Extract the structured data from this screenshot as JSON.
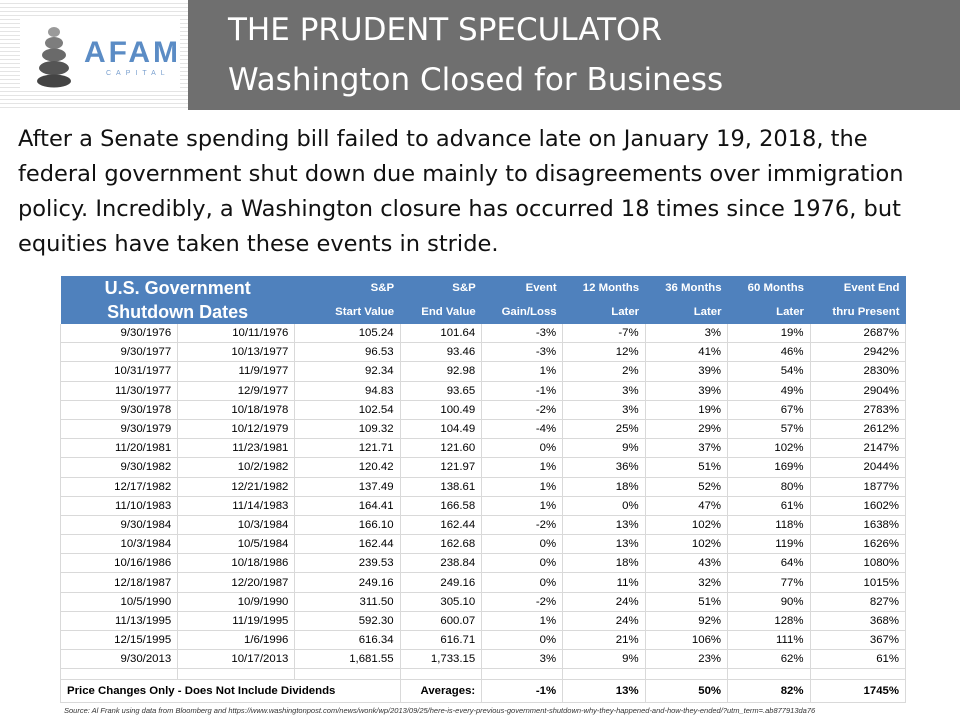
{
  "logo": {
    "name": "AFAM",
    "sub": "CAPITAL",
    "icon": "stacked-stones-icon"
  },
  "header": {
    "title_line1": "THE PRUDENT SPECULATOR",
    "title_line2": "Washington Closed for Business",
    "bg_color": "#6f6f6f"
  },
  "intro": "After a Senate spending bill failed to advance late on January 19, 2018, the federal government shut down due mainly to disagreements over immigration policy. Incredibly, a Washington closure has occurred 18 times since 1976, but equities have taken these events in stride.",
  "table": {
    "header_color": "#4f81bd",
    "title_line1": "U.S. Government",
    "title_line2": "Shutdown Dates",
    "columns": [
      {
        "line1": "S&P",
        "line2": "Start Value"
      },
      {
        "line1": "S&P",
        "line2": "End Value"
      },
      {
        "line1": "Event",
        "line2": "Gain/Loss"
      },
      {
        "line1": "12 Months",
        "line2": "Later"
      },
      {
        "line1": "36 Months",
        "line2": "Later"
      },
      {
        "line1": "60 Months",
        "line2": "Later"
      },
      {
        "line1": "Event End",
        "line2": "thru Present"
      }
    ],
    "rows": [
      [
        "9/30/1976",
        "10/11/1976",
        "105.24",
        "101.64",
        "-3%",
        "-7%",
        "3%",
        "19%",
        "2687%"
      ],
      [
        "9/30/1977",
        "10/13/1977",
        "96.53",
        "93.46",
        "-3%",
        "12%",
        "41%",
        "46%",
        "2942%"
      ],
      [
        "10/31/1977",
        "11/9/1977",
        "92.34",
        "92.98",
        "1%",
        "2%",
        "39%",
        "54%",
        "2830%"
      ],
      [
        "11/30/1977",
        "12/9/1977",
        "94.83",
        "93.65",
        "-1%",
        "3%",
        "39%",
        "49%",
        "2904%"
      ],
      [
        "9/30/1978",
        "10/18/1978",
        "102.54",
        "100.49",
        "-2%",
        "3%",
        "19%",
        "67%",
        "2783%"
      ],
      [
        "9/30/1979",
        "10/12/1979",
        "109.32",
        "104.49",
        "-4%",
        "25%",
        "29%",
        "57%",
        "2612%"
      ],
      [
        "11/20/1981",
        "11/23/1981",
        "121.71",
        "121.60",
        "0%",
        "9%",
        "37%",
        "102%",
        "2147%"
      ],
      [
        "9/30/1982",
        "10/2/1982",
        "120.42",
        "121.97",
        "1%",
        "36%",
        "51%",
        "169%",
        "2044%"
      ],
      [
        "12/17/1982",
        "12/21/1982",
        "137.49",
        "138.61",
        "1%",
        "18%",
        "52%",
        "80%",
        "1877%"
      ],
      [
        "11/10/1983",
        "11/14/1983",
        "164.41",
        "166.58",
        "1%",
        "0%",
        "47%",
        "61%",
        "1602%"
      ],
      [
        "9/30/1984",
        "10/3/1984",
        "166.10",
        "162.44",
        "-2%",
        "13%",
        "102%",
        "118%",
        "1638%"
      ],
      [
        "10/3/1984",
        "10/5/1984",
        "162.44",
        "162.68",
        "0%",
        "13%",
        "102%",
        "119%",
        "1626%"
      ],
      [
        "10/16/1986",
        "10/18/1986",
        "239.53",
        "238.84",
        "0%",
        "18%",
        "43%",
        "64%",
        "1080%"
      ],
      [
        "12/18/1987",
        "12/20/1987",
        "249.16",
        "249.16",
        "0%",
        "11%",
        "32%",
        "77%",
        "1015%"
      ],
      [
        "10/5/1990",
        "10/9/1990",
        "311.50",
        "305.10",
        "-2%",
        "24%",
        "51%",
        "90%",
        "827%"
      ],
      [
        "11/13/1995",
        "11/19/1995",
        "592.30",
        "600.07",
        "1%",
        "24%",
        "92%",
        "128%",
        "368%"
      ],
      [
        "12/15/1995",
        "1/6/1996",
        "616.34",
        "616.71",
        "0%",
        "21%",
        "106%",
        "111%",
        "367%"
      ],
      [
        "9/30/2013",
        "10/17/2013",
        "1,681.55",
        "1,733.15",
        "3%",
        "9%",
        "23%",
        "62%",
        "61%"
      ]
    ],
    "averages": {
      "note": "Price Changes Only - Does Not Include Dividends",
      "label": "Averages:",
      "values": [
        "-1%",
        "13%",
        "50%",
        "82%",
        "1745%"
      ]
    },
    "source": "Source: Al Frank using data from Bloomberg and https://www.washingtonpost.com/news/wonk/wp/2013/09/25/here-is-every-previous-government-shutdown-why-they-happened-and-how-they-ended/?utm_term=.ab877913da76"
  }
}
